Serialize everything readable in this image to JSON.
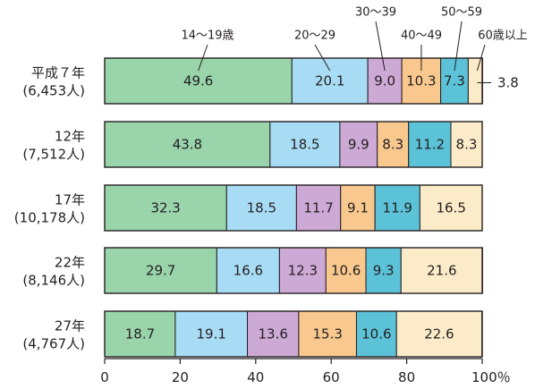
{
  "chart_data": {
    "type": "bar",
    "orientation": "horizontal",
    "stacked": true,
    "categories": [
      [
        "平成７年",
        "(6,453人)"
      ],
      [
        "12年",
        "(7,512人)"
      ],
      [
        "17年",
        "(10,178人)"
      ],
      [
        "22年",
        "(8,146人)"
      ],
      [
        "27年",
        "(4,767人)"
      ]
    ],
    "series": [
      {
        "name": "14～19歳",
        "color": "#99d4aa",
        "values": [
          49.6,
          43.8,
          32.3,
          29.7,
          18.7
        ]
      },
      {
        "name": "20～29",
        "color": "#a8dcf4",
        "values": [
          20.1,
          18.5,
          18.5,
          16.6,
          19.1
        ]
      },
      {
        "name": "30～39",
        "color": "#cda9d6",
        "values": [
          9.0,
          9.9,
          11.7,
          12.3,
          13.6
        ]
      },
      {
        "name": "40～49",
        "color": "#f8c88e",
        "values": [
          10.3,
          8.3,
          9.1,
          10.6,
          15.3
        ]
      },
      {
        "name": "50～59",
        "color": "#5cc2d8",
        "values": [
          7.3,
          11.2,
          11.9,
          9.3,
          10.6
        ]
      },
      {
        "name": "60歳以上",
        "color": "#fbebc8",
        "values": [
          3.8,
          8.3,
          16.5,
          21.6,
          22.6
        ]
      }
    ],
    "value_labels": [
      [
        "49.6",
        "20.1",
        "9.0",
        "10.3",
        "7.3",
        "3.8"
      ],
      [
        "43.8",
        "18.5",
        "9.9",
        "8.3",
        "11.2",
        "8.3"
      ],
      [
        "32.3",
        "18.5",
        "11.7",
        "9.1",
        "11.9",
        "16.5"
      ],
      [
        "29.7",
        "16.6",
        "12.3",
        "10.6",
        "9.3",
        "21.6"
      ],
      [
        "18.7",
        "19.1",
        "13.6",
        "15.3",
        "10.6",
        "22.6"
      ]
    ],
    "callouts": [
      {
        "row": 0,
        "series": 5,
        "text": "3.8"
      }
    ],
    "x_ticks": [
      "0",
      "20",
      "40",
      "60",
      "80",
      "100％"
    ],
    "xlim": [
      0,
      100
    ],
    "legend": "labels above first bar with leader lines",
    "grid": false
  }
}
